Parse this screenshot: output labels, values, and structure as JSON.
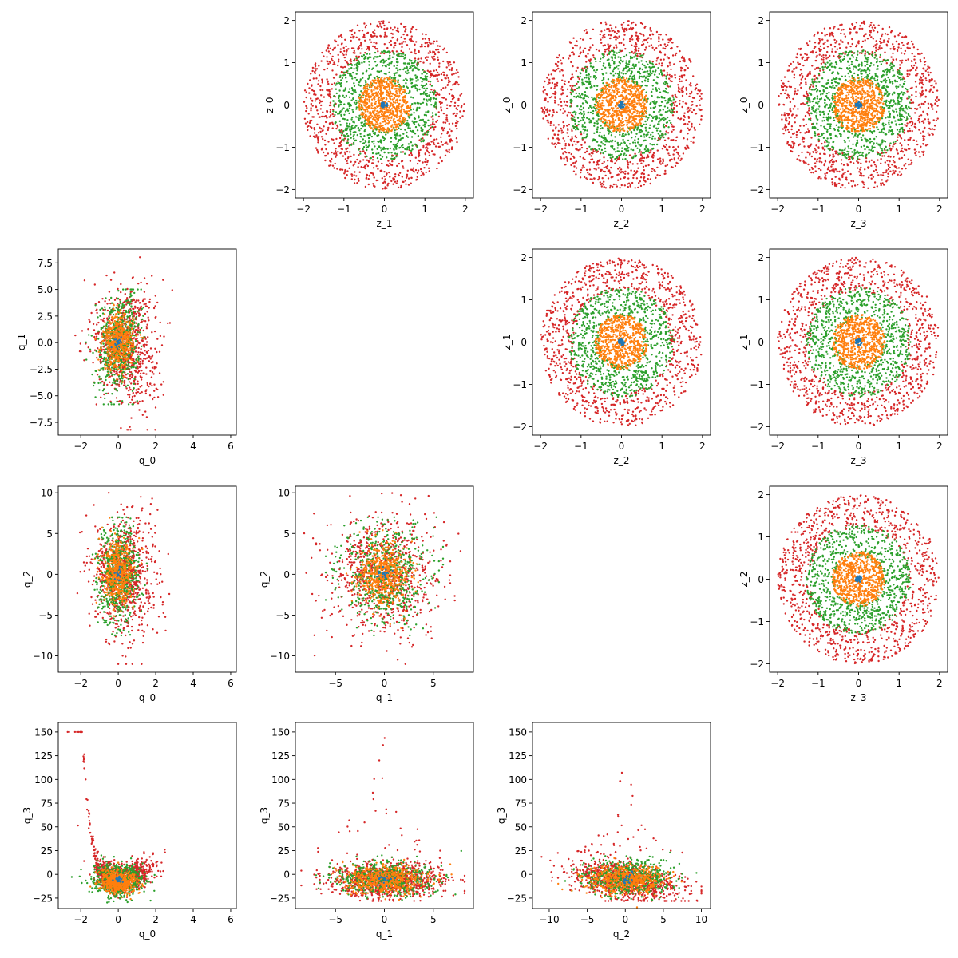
{
  "chart_data": [
    {
      "type": "scatter",
      "xlabel": "z_1",
      "ylabel": "z_0",
      "xlim": [
        -2.2,
        2.2
      ],
      "ylim": [
        -2.2,
        2.2
      ],
      "xticks": [
        -2,
        -1,
        0,
        1,
        2
      ],
      "yticks": [
        -2,
        -1,
        0,
        1,
        2
      ],
      "distribution": "disk"
    },
    {
      "type": "scatter",
      "xlabel": "z_2",
      "ylabel": "z_0",
      "xlim": [
        -2.2,
        2.2
      ],
      "ylim": [
        -2.2,
        2.2
      ],
      "xticks": [
        -2,
        -1,
        0,
        1,
        2
      ],
      "yticks": [
        -2,
        -1,
        0,
        1,
        2
      ],
      "distribution": "disk"
    },
    {
      "type": "scatter",
      "xlabel": "z_3",
      "ylabel": "z_0",
      "xlim": [
        -2.2,
        2.2
      ],
      "ylim": [
        -2.2,
        2.2
      ],
      "xticks": [
        -2,
        -1,
        0,
        1,
        2
      ],
      "yticks": [
        -2,
        -1,
        0,
        1,
        2
      ],
      "distribution": "disk"
    },
    {
      "type": "scatter",
      "xlabel": "q_0",
      "ylabel": "q_1",
      "xlim": [
        -3.2,
        6.3
      ],
      "ylim": [
        -8.7,
        8.8
      ],
      "xticks": [
        -2,
        0,
        2,
        4,
        6
      ],
      "yticks": [
        -7.5,
        -5.0,
        -2.5,
        0.0,
        2.5,
        5.0,
        7.5
      ],
      "distribution": "q0q1"
    },
    {
      "type": "scatter",
      "xlabel": "z_2",
      "ylabel": "z_1",
      "xlim": [
        -2.2,
        2.2
      ],
      "ylim": [
        -2.2,
        2.2
      ],
      "xticks": [
        -2,
        -1,
        0,
        1,
        2
      ],
      "yticks": [
        -2,
        -1,
        0,
        1,
        2
      ],
      "distribution": "disk"
    },
    {
      "type": "scatter",
      "xlabel": "z_3",
      "ylabel": "z_1",
      "xlim": [
        -2.2,
        2.2
      ],
      "ylim": [
        -2.2,
        2.2
      ],
      "xticks": [
        -2,
        -1,
        0,
        1,
        2
      ],
      "yticks": [
        -2,
        -1,
        0,
        1,
        2
      ],
      "distribution": "disk"
    },
    {
      "type": "scatter",
      "xlabel": "q_0",
      "ylabel": "q_2",
      "xlim": [
        -3.2,
        6.3
      ],
      "ylim": [
        -12,
        10.8
      ],
      "xticks": [
        -2,
        0,
        2,
        4,
        6
      ],
      "yticks": [
        -10,
        -5,
        0,
        5,
        10
      ],
      "distribution": "q0q2"
    },
    {
      "type": "scatter",
      "xlabel": "q_1",
      "ylabel": "q_2",
      "xlim": [
        -9.1,
        9.1
      ],
      "ylim": [
        -12,
        10.8
      ],
      "xticks": [
        -5,
        0,
        5
      ],
      "yticks": [
        -10,
        -5,
        0,
        5,
        10
      ],
      "distribution": "q1q2"
    },
    {
      "type": "scatter",
      "xlabel": "z_3",
      "ylabel": "z_2",
      "xlim": [
        -2.2,
        2.2
      ],
      "ylim": [
        -2.2,
        2.2
      ],
      "xticks": [
        -2,
        -1,
        0,
        1,
        2
      ],
      "yticks": [
        -2,
        -1,
        0,
        1,
        2
      ],
      "distribution": "disk"
    },
    {
      "type": "scatter",
      "xlabel": "q_0",
      "ylabel": "q_3",
      "xlim": [
        -3.2,
        6.3
      ],
      "ylim": [
        -36,
        160
      ],
      "xticks": [
        -2,
        0,
        2,
        4,
        6
      ],
      "yticks": [
        -25,
        0,
        25,
        50,
        75,
        100,
        125,
        150
      ],
      "distribution": "q0q3"
    },
    {
      "type": "scatter",
      "xlabel": "q_1",
      "ylabel": "q_3",
      "xlim": [
        -9.1,
        9.1
      ],
      "ylim": [
        -36,
        160
      ],
      "xticks": [
        -5,
        0,
        5
      ],
      "yticks": [
        -25,
        0,
        25,
        50,
        75,
        100,
        125,
        150
      ],
      "distribution": "q1q3"
    },
    {
      "type": "scatter",
      "xlabel": "q_2",
      "ylabel": "q_3",
      "xlim": [
        -12.2,
        11.2
      ],
      "ylim": [
        -36,
        160
      ],
      "xticks": [
        -10,
        -5,
        0,
        5,
        10
      ],
      "yticks": [
        -25,
        0,
        25,
        50,
        75,
        100,
        125,
        150
      ],
      "distribution": "q2q3"
    }
  ],
  "series_colors": [
    "#1f77b4",
    "#ff7f0e",
    "#2ca02c",
    "#d62728"
  ],
  "marker_size": 1.2
}
